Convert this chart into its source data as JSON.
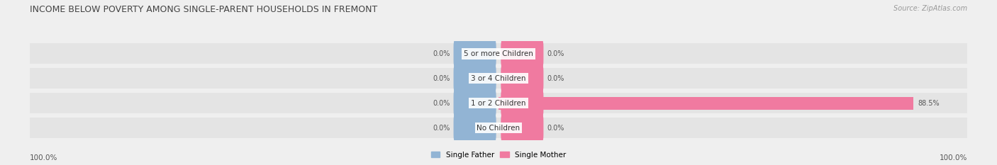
{
  "title": "INCOME BELOW POVERTY AMONG SINGLE-PARENT HOUSEHOLDS IN FREMONT",
  "source": "Source: ZipAtlas.com",
  "categories": [
    "No Children",
    "1 or 2 Children",
    "3 or 4 Children",
    "5 or more Children"
  ],
  "single_father": [
    0.0,
    0.0,
    0.0,
    0.0
  ],
  "single_mother": [
    0.0,
    88.5,
    0.0,
    0.0
  ],
  "father_color": "#92b4d4",
  "mother_color": "#f07aa0",
  "bg_color": "#efefef",
  "row_bg_color": "#e4e4e4",
  "axis_min": -100.0,
  "axis_max": 100.0,
  "left_label": "100.0%",
  "right_label": "100.0%",
  "title_fontsize": 9,
  "source_fontsize": 7,
  "label_fontsize": 7.5,
  "bar_label_fontsize": 7,
  "category_fontsize": 7.5,
  "legend_fontsize": 7.5
}
